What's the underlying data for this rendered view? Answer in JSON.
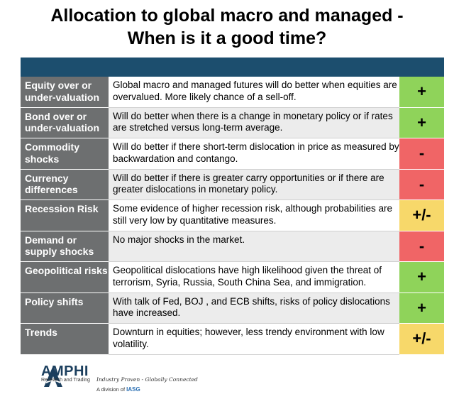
{
  "title": {
    "line1": "Allocation to global macro and managed -",
    "line2": "When is it a good time?"
  },
  "colors": {
    "header": "#1c4e6e",
    "category": "#6d6f70",
    "positive": "#8fd35a",
    "negative": "#f06566",
    "neutral": "#f7d86a"
  },
  "rows": [
    {
      "category": "Equity over or under-valuation",
      "description": "Global macro and managed futures will do better when equities are overvalued. More likely chance of a sell-off.",
      "signal": "+",
      "color": "green"
    },
    {
      "category": "Bond over or under-valuation",
      "description": "Will do better when there is a change in monetary policy or if rates are stretched versus long-term average.",
      "signal": "+",
      "color": "green"
    },
    {
      "category": "Commodity shocks",
      "description": "Will do better if there short-term dislocation in price as measured by backwardation and contango.",
      "signal": "-",
      "color": "red"
    },
    {
      "category": "Currency differences",
      "description": "Will do better if there is greater carry opportunities or if there are greater dislocations in monetary policy.",
      "signal": "-",
      "color": "red"
    },
    {
      "category": "Recession  Risk",
      "description": "Some evidence of higher recession risk, although probabilities are still very low by quantitative measures.",
      "signal": "+/-",
      "color": "yellow"
    },
    {
      "category": "Demand or supply shocks",
      "description": "No major shocks in the market.",
      "signal": "-",
      "color": "red"
    },
    {
      "category": "Geopolitical risks",
      "description": "Geopolitical dislocations have high likelihood given the threat of terrorism, Syria, Russia, South China Sea, and immigration.",
      "signal": "+",
      "color": "green"
    },
    {
      "category": "Policy shifts",
      "description": "With talk of Fed, BOJ , and ECB shifts, risks of policy dislocations have increased.",
      "signal": "+",
      "color": "green"
    },
    {
      "category": "Trends",
      "description": "Downturn in equities; however, less trendy environment with low volatility.",
      "signal": "+/-",
      "color": "yellow"
    }
  ],
  "footer": {
    "logo_name": "AMPHI",
    "logo_sub": "Research and Trading",
    "tagline": "Industry Proven - Globally Connected",
    "division_prefix": "A division of",
    "division_name": "IASG"
  }
}
